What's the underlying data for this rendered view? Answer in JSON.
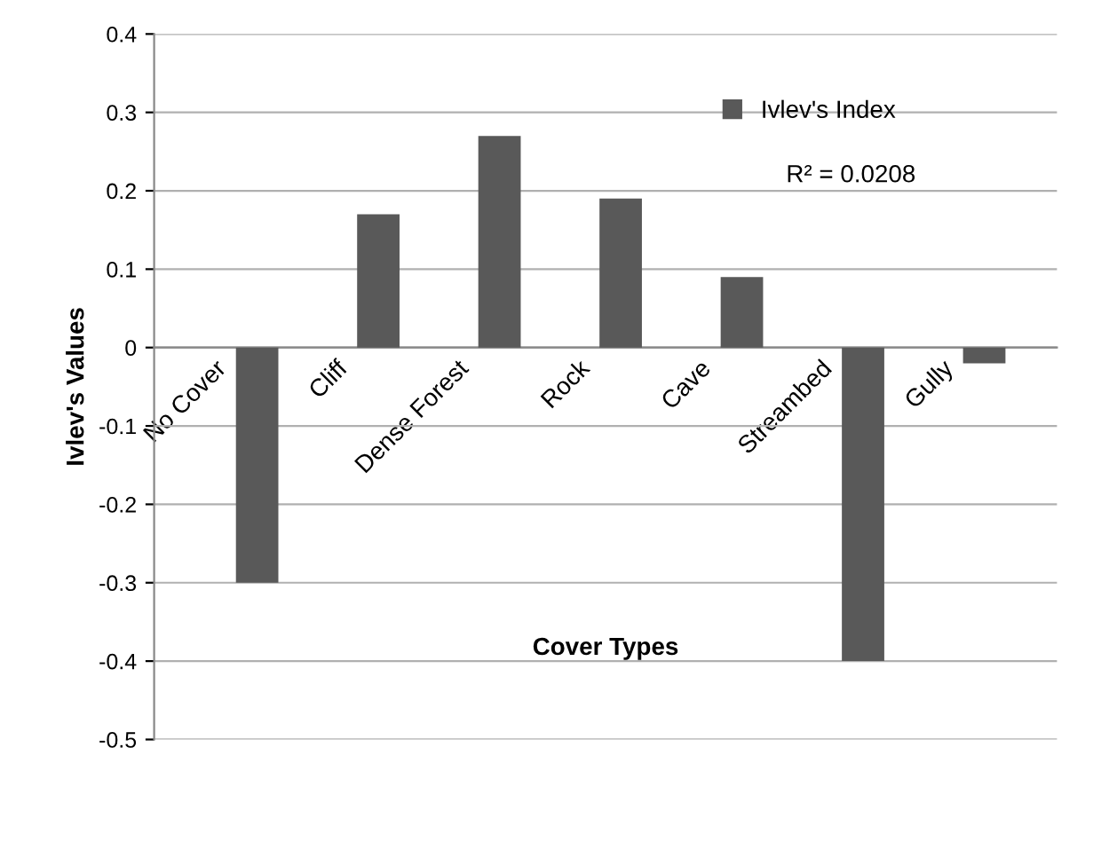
{
  "chart_data": {
    "type": "bar",
    "categories": [
      "No Cover",
      "Cliff",
      "Dense Forest",
      "Rock",
      "Cave",
      "Streambed",
      "Gully"
    ],
    "series": [
      {
        "name": "Ivlev's Index",
        "color": "#595959",
        "values": [
          -0.3,
          0.17,
          0.27,
          0.19,
          0.09,
          -0.4,
          -0.02
        ]
      }
    ],
    "xlabel": "Cover Types",
    "ylabel": "Ivlev's Values",
    "ylim": [
      -0.5,
      0.4
    ],
    "yticks": [
      0.4,
      0.3,
      0.2,
      0.1,
      0,
      -0.1,
      -0.2,
      -0.3,
      -0.4,
      -0.5
    ],
    "annotations": [
      "R² = 0.0208"
    ],
    "grid": "y",
    "legend": "top right"
  }
}
